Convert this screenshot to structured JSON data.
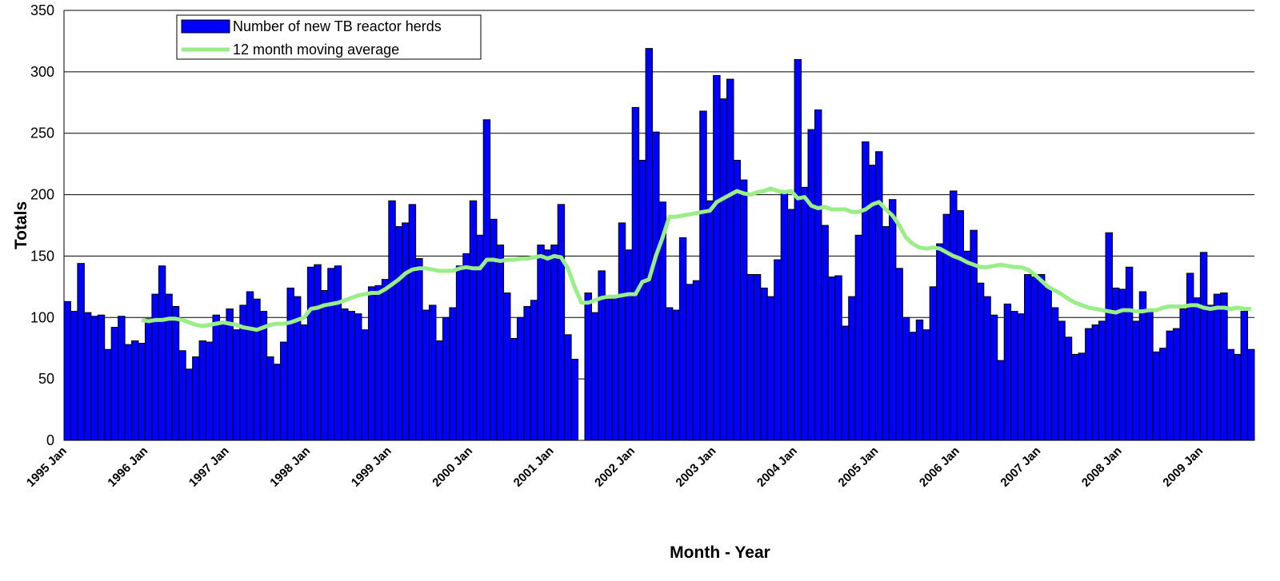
{
  "chart_data": {
    "type": "bar",
    "x_label": "Month - Year",
    "y_label": "Totals",
    "categories": [
      "1995 Jan",
      null,
      null,
      null,
      null,
      null,
      null,
      null,
      null,
      null,
      null,
      null,
      "1996 Jan",
      null,
      null,
      null,
      null,
      null,
      null,
      null,
      null,
      null,
      null,
      null,
      "1997 Jan",
      null,
      null,
      null,
      null,
      null,
      null,
      null,
      null,
      null,
      null,
      null,
      "1998 Jan",
      null,
      null,
      null,
      null,
      null,
      null,
      null,
      null,
      null,
      null,
      null,
      "1999 Jan",
      null,
      null,
      null,
      null,
      null,
      null,
      null,
      null,
      null,
      null,
      null,
      "2000 Jan",
      null,
      null,
      null,
      null,
      null,
      null,
      null,
      null,
      null,
      null,
      null,
      "2001 Jan",
      null,
      null,
      null,
      null,
      null,
      null,
      null,
      null,
      null,
      null,
      null,
      "2002 Jan",
      null,
      null,
      null,
      null,
      null,
      null,
      null,
      null,
      null,
      null,
      null,
      "2003 Jan",
      null,
      null,
      null,
      null,
      null,
      null,
      null,
      null,
      null,
      null,
      null,
      "2004 Jan",
      null,
      null,
      null,
      null,
      null,
      null,
      null,
      null,
      null,
      null,
      null,
      "2005 Jan",
      null,
      null,
      null,
      null,
      null,
      null,
      null,
      null,
      null,
      null,
      null,
      "2006 Jan",
      null,
      null,
      null,
      null,
      null,
      null,
      null,
      null,
      null,
      null,
      null,
      "2007 Jan",
      null,
      null,
      null,
      null,
      null,
      null,
      null,
      null,
      null,
      null,
      null,
      "2008 Jan",
      null,
      null,
      null,
      null,
      null,
      null,
      null,
      null,
      null,
      null,
      null,
      "2009 Jan",
      null,
      null,
      null,
      null,
      null,
      null,
      null
    ],
    "series": [
      {
        "name": "Number of new TB reactor herds",
        "color": "#0000ff",
        "values": [
          113,
          105,
          144,
          104,
          101,
          102,
          74,
          92,
          101,
          78,
          81,
          79,
          99,
          119,
          142,
          119,
          109,
          73,
          58,
          68,
          81,
          80,
          102,
          95,
          107,
          90,
          110,
          121,
          115,
          105,
          68,
          62,
          80,
          124,
          117,
          94,
          141,
          143,
          122,
          140,
          142,
          107,
          105,
          103,
          90,
          125,
          126,
          131,
          195,
          174,
          177,
          192,
          148,
          106,
          110,
          81,
          100,
          108,
          142,
          152,
          195,
          167,
          261,
          180,
          159,
          120,
          83,
          100,
          109,
          114,
          159,
          155,
          159,
          192,
          86,
          66,
          null,
          120,
          104,
          138,
          115,
          117,
          177,
          155,
          271,
          228,
          319,
          251,
          194,
          108,
          106,
          165,
          127,
          130,
          268,
          195,
          297,
          278,
          294,
          228,
          212,
          135,
          135,
          124,
          117,
          147,
          201,
          188,
          310,
          206,
          253,
          269,
          175,
          133,
          134,
          93,
          117,
          167,
          243,
          224,
          235,
          174,
          196,
          140,
          100,
          88,
          98,
          90,
          125,
          160,
          184,
          203,
          187,
          154,
          171,
          128,
          117,
          102,
          65,
          111,
          105,
          103,
          135,
          133,
          135,
          124,
          108,
          97,
          84,
          70,
          71,
          91,
          94,
          97,
          169,
          124,
          123,
          141,
          97,
          121,
          106,
          72,
          75,
          89,
          91,
          107,
          136,
          116,
          153,
          110,
          119,
          120,
          74,
          70,
          105,
          74
        ]
      },
      {
        "name": "12 month moving average",
        "color": "#99ee88",
        "type": "line",
        "values": [
          null,
          null,
          null,
          null,
          null,
          null,
          null,
          null,
          null,
          null,
          null,
          98,
          97,
          98,
          98,
          99,
          99,
          98,
          96,
          94,
          93,
          94,
          95,
          96,
          95,
          94,
          92,
          91,
          90,
          92,
          94,
          95,
          95,
          96,
          98,
          100,
          107,
          108,
          110,
          111,
          112,
          114,
          116,
          118,
          119,
          120,
          120,
          123,
          127,
          131,
          136,
          139,
          140,
          140,
          139,
          138,
          138,
          138,
          140,
          141,
          140,
          140,
          147,
          147,
          146,
          147,
          147,
          148,
          148,
          149,
          150,
          148,
          150,
          149,
          140,
          125,
          112,
          112,
          114,
          116,
          117,
          117,
          118,
          119,
          119,
          129,
          131,
          150,
          165,
          182,
          182,
          183,
          184,
          185,
          186,
          187,
          194,
          197,
          200,
          203,
          201,
          200,
          202,
          203,
          205,
          203,
          202,
          203,
          197,
          198,
          191,
          189,
          190,
          188,
          188,
          188,
          186,
          186,
          188,
          192,
          194,
          188,
          183,
          175,
          165,
          160,
          157,
          156,
          157,
          156,
          153,
          150,
          148,
          145,
          143,
          141,
          141,
          142,
          143,
          142,
          141,
          141,
          139,
          135,
          130,
          125,
          122,
          119,
          115,
          112,
          110,
          108,
          107,
          106,
          105,
          104,
          106,
          106,
          105,
          105,
          106,
          106,
          108,
          109,
          109,
          109,
          110,
          110,
          108,
          107,
          108,
          108,
          107,
          108,
          107,
          107
        ]
      }
    ],
    "ylim": [
      0,
      350
    ],
    "yticks": [
      0,
      50,
      100,
      150,
      200,
      250,
      300,
      350
    ],
    "grid": true,
    "legend": "top-left"
  }
}
